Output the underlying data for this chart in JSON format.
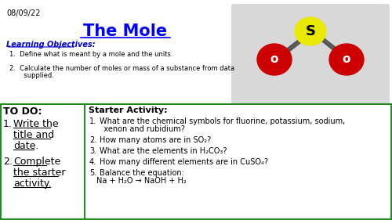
{
  "date": "08/09/22",
  "title": "The Mole",
  "bg_color": "#ffffff",
  "title_color": "#0000ff",
  "date_color": "#000000",
  "lo_label": "Learning Objectives:",
  "lo_color": "#0000cd",
  "lo_items": [
    "Define what is meant by a mole and the units.",
    "Calculate the number of moles or mass of a substance from data\n   supplied."
  ],
  "todo_title": "TO DO:",
  "todo_items": [
    "Write the\ntitle and\ndate.",
    "Complete\nthe starter\nactivity."
  ],
  "starter_title": "Starter Activity:",
  "starter_items": [
    "What are the chemical symbols for fluorine, potassium, sodium,\n   xenon and rubidium?",
    "How many atoms are in SO₂?",
    "What are the elements in H₂CO₃?",
    "How many different elements are in CuSO₄?",
    "Balance the equation:\nNa + H₂O → NaOH + H₂"
  ],
  "box_border_color": "#228B22",
  "so2_bg": "#d8d8d8",
  "S_color": "#e8e800",
  "O_color": "#cc0000"
}
